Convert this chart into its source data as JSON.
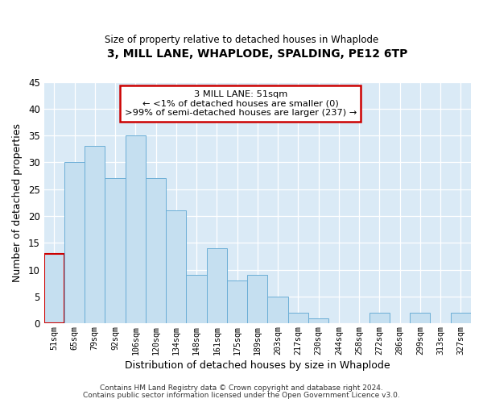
{
  "title": "3, MILL LANE, WHAPLODE, SPALDING, PE12 6TP",
  "subtitle": "Size of property relative to detached houses in Whaplode",
  "xlabel": "Distribution of detached houses by size in Whaplode",
  "ylabel": "Number of detached properties",
  "bar_color": "#c5dff0",
  "bar_edge_color": "#6baed6",
  "background_color": "#daeaf6",
  "fig_background_color": "#ffffff",
  "ylim": [
    0,
    45
  ],
  "yticks": [
    0,
    5,
    10,
    15,
    20,
    25,
    30,
    35,
    40,
    45
  ],
  "bin_labels": [
    "51sqm",
    "65sqm",
    "79sqm",
    "92sqm",
    "106sqm",
    "120sqm",
    "134sqm",
    "148sqm",
    "161sqm",
    "175sqm",
    "189sqm",
    "203sqm",
    "217sqm",
    "230sqm",
    "244sqm",
    "258sqm",
    "272sqm",
    "286sqm",
    "299sqm",
    "313sqm",
    "327sqm"
  ],
  "bar_values": [
    13,
    30,
    33,
    27,
    35,
    27,
    21,
    9,
    14,
    8,
    9,
    5,
    2,
    1,
    0,
    0,
    2,
    0,
    2,
    0,
    2
  ],
  "annotation_title": "3 MILL LANE: 51sqm",
  "annotation_line1": "← <1% of detached houses are smaller (0)",
  "annotation_line2": ">99% of semi-detached houses are larger (237) →",
  "annotation_box_color": "#ffffff",
  "annotation_box_edge_color": "#cc0000",
  "footer_line1": "Contains HM Land Registry data © Crown copyright and database right 2024.",
  "footer_line2": "Contains public sector information licensed under the Open Government Licence v3.0."
}
